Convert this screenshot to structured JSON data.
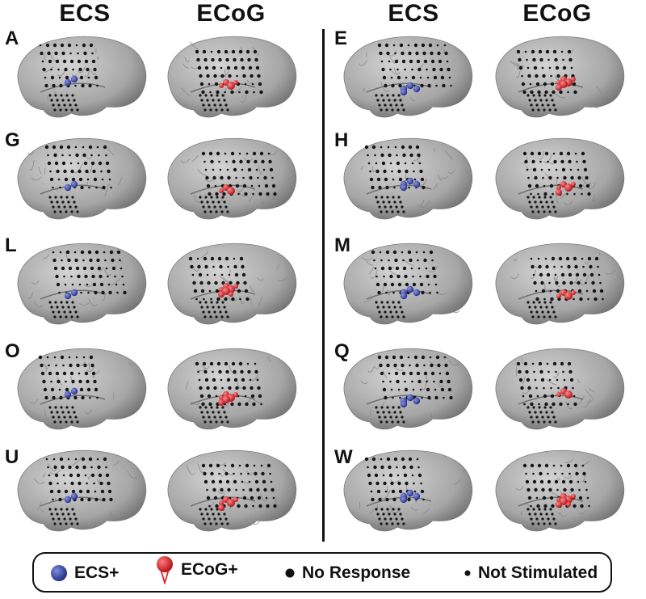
{
  "columns": {
    "left_ecs": "ECS",
    "left_ecog": "ECoG",
    "right_ecs": "ECS",
    "right_ecog": "ECoG"
  },
  "panels": {
    "left": [
      "A",
      "G",
      "L",
      "O",
      "U"
    ],
    "right": [
      "E",
      "H",
      "M",
      "Q",
      "W"
    ]
  },
  "legend": {
    "ecs_pos": "ECS+",
    "ecog_pos": "ECoG+",
    "no_response": "No Response",
    "not_stimulated": "Not Stimulated"
  },
  "colors": {
    "ecs_pos": "#3a4aa8",
    "ecog_pos": "#d8252a",
    "electrode": "#151515",
    "brain": "#a6a6a6"
  }
}
